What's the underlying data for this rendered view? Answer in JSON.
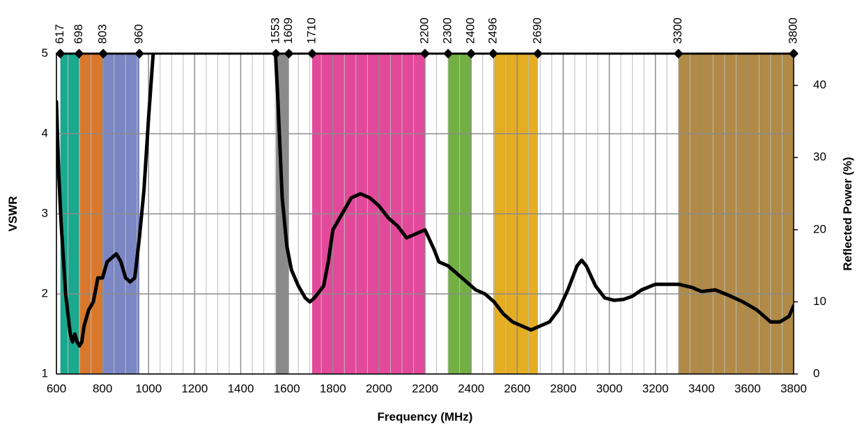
{
  "chart_data": {
    "type": "line",
    "x_label": "Frequency (MHz)",
    "y_label": "VSWR",
    "y2_label": "Reflected Power (%)",
    "xlim": [
      600,
      3800
    ],
    "xticks": [
      600,
      800,
      1000,
      1200,
      1400,
      1600,
      1800,
      2000,
      2200,
      2400,
      2600,
      2800,
      3000,
      3200,
      3400,
      3600,
      3800
    ],
    "ylim": [
      1,
      5
    ],
    "yticks": [
      1,
      2,
      3,
      4,
      5
    ],
    "y2lim": [
      0,
      44.4
    ],
    "y2ticks": [
      0,
      10,
      20,
      30,
      40
    ],
    "top_ticks": [
      617,
      698,
      803,
      960,
      1553,
      1609,
      1710,
      2200,
      2300,
      2400,
      2496,
      2690,
      3300,
      3800
    ],
    "bands": [
      {
        "start": 617,
        "end": 698,
        "color": "#1aa88e"
      },
      {
        "start": 698,
        "end": 803,
        "color": "#d9782c"
      },
      {
        "start": 803,
        "end": 960,
        "color": "#7b86c4"
      },
      {
        "start": 1553,
        "end": 1609,
        "color": "#8a8a8a"
      },
      {
        "start": 1710,
        "end": 2200,
        "color": "#e3499a"
      },
      {
        "start": 2300,
        "end": 2400,
        "color": "#72b043"
      },
      {
        "start": 2496,
        "end": 2690,
        "color": "#e4ad22"
      },
      {
        "start": 3300,
        "end": 3800,
        "color": "#b08a46"
      }
    ],
    "grid": true,
    "x": [
      600,
      610,
      620,
      640,
      660,
      670,
      680,
      690,
      700,
      710,
      720,
      740,
      760,
      780,
      800,
      820,
      840,
      860,
      880,
      900,
      920,
      940,
      960,
      980,
      1000,
      1020,
      1040,
      1540,
      1560,
      1580,
      1600,
      1620,
      1650,
      1680,
      1700,
      1720,
      1760,
      1780,
      1800,
      1840,
      1880,
      1920,
      1960,
      2000,
      2040,
      2080,
      2120,
      2160,
      2200,
      2240,
      2260,
      2300,
      2340,
      2380,
      2420,
      2460,
      2500,
      2540,
      2580,
      2620,
      2660,
      2700,
      2740,
      2780,
      2820,
      2860,
      2880,
      2900,
      2940,
      2980,
      3020,
      3060,
      3100,
      3140,
      3200,
      3260,
      3300,
      3360,
      3400,
      3460,
      3520,
      3580,
      3640,
      3700,
      3740,
      3780,
      3800
    ],
    "series": [
      {
        "color": "#000000",
        "values": [
          4.4,
          3.5,
          2.9,
          2.0,
          1.5,
          1.4,
          1.5,
          1.4,
          1.35,
          1.4,
          1.6,
          1.8,
          1.9,
          2.2,
          2.2,
          2.4,
          2.45,
          2.5,
          2.4,
          2.2,
          2.15,
          2.2,
          2.7,
          3.3,
          4.2,
          5.0,
          5.6,
          5.6,
          4.5,
          3.2,
          2.6,
          2.3,
          2.1,
          1.95,
          1.9,
          1.95,
          2.1,
          2.4,
          2.8,
          3.0,
          3.2,
          3.25,
          3.2,
          3.1,
          2.95,
          2.85,
          2.7,
          2.75,
          2.8,
          2.55,
          2.4,
          2.35,
          2.25,
          2.15,
          2.05,
          2.0,
          1.9,
          1.75,
          1.65,
          1.6,
          1.55,
          1.6,
          1.65,
          1.8,
          2.05,
          2.35,
          2.42,
          2.35,
          2.1,
          1.95,
          1.92,
          1.93,
          1.97,
          2.05,
          2.12,
          2.12,
          2.12,
          2.08,
          2.03,
          2.05,
          1.98,
          1.9,
          1.8,
          1.65,
          1.65,
          1.72,
          1.85
        ]
      }
    ]
  }
}
